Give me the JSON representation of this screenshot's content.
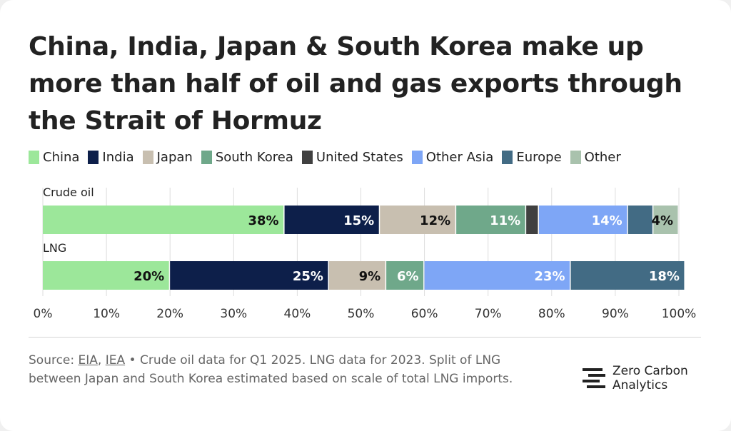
{
  "title": "China, India, Japan & South Korea make up more than half of oil and gas exports through the Strait of Hormuz",
  "legend": [
    {
      "label": "China",
      "color": "#9ce79a"
    },
    {
      "label": "India",
      "color": "#0d1f4a"
    },
    {
      "label": "Japan",
      "color": "#c8bfb0"
    },
    {
      "label": "South Korea",
      "color": "#6fa88a"
    },
    {
      "label": "United States",
      "color": "#404040"
    },
    {
      "label": "Other Asia",
      "color": "#7ea6f6"
    },
    {
      "label": "Europe",
      "color": "#426b84"
    },
    {
      "label": "Other",
      "color": "#a9c2ad"
    }
  ],
  "chart_data": {
    "type": "bar",
    "orientation": "horizontal-stacked",
    "categories": [
      "Crude oil",
      "LNG"
    ],
    "series": [
      {
        "name": "China",
        "values": [
          38,
          20
        ],
        "labels": [
          "38%",
          "20%"
        ]
      },
      {
        "name": "India",
        "values": [
          15,
          25
        ],
        "labels": [
          "15%",
          "25%"
        ]
      },
      {
        "name": "Japan",
        "values": [
          12,
          9
        ],
        "labels": [
          "12%",
          "9%"
        ]
      },
      {
        "name": "South Korea",
        "values": [
          11,
          6
        ],
        "labels": [
          "11%",
          "6%"
        ]
      },
      {
        "name": "United States",
        "values": [
          2,
          0
        ],
        "labels": [
          "",
          ""
        ]
      },
      {
        "name": "Other Asia",
        "values": [
          14,
          23
        ],
        "labels": [
          "14%",
          "23%"
        ]
      },
      {
        "name": "Europe",
        "values": [
          4,
          18
        ],
        "labels": [
          "",
          "18%"
        ]
      },
      {
        "name": "Other",
        "values": [
          4,
          0
        ],
        "labels": [
          "4%",
          ""
        ]
      }
    ],
    "xlim": [
      0,
      100
    ],
    "xticks": [
      "0%",
      "10%",
      "20%",
      "30%",
      "40%",
      "50%",
      "60%",
      "70%",
      "80%",
      "90%",
      "100%"
    ],
    "legend_position": "top"
  },
  "footer": {
    "source_prefix": "Source: ",
    "link1": "EIA",
    "sep": ", ",
    "link2": "IEA",
    "note": " • Crude oil data for Q1 2025. LNG data for 2023. Split of LNG between Japan and South Korea estimated based on scale of total LNG imports.",
    "logo_line1": "Zero Carbon",
    "logo_line2": "Analytics"
  }
}
